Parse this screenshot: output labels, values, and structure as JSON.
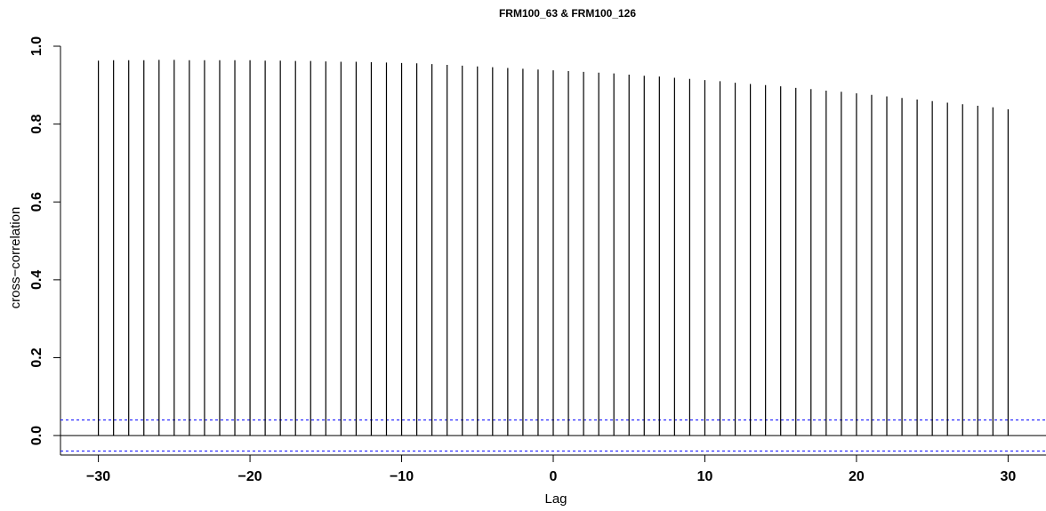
{
  "chart_data": {
    "type": "bar",
    "title": "FRM100_63 & FRM100_126",
    "xlabel": "Lag",
    "ylabel": "cross−correlation",
    "x_ticks": [
      "−30",
      "−20",
      "−10",
      "0",
      "10",
      "20",
      "30"
    ],
    "y_ticks": [
      "0.0",
      "0.2",
      "0.4",
      "0.6",
      "0.8",
      "1.0"
    ],
    "xlim": [
      -32.5,
      32.5
    ],
    "ylim": [
      -0.05,
      1.0
    ],
    "confidence_band": 0.04,
    "lags": [
      -30,
      -29,
      -28,
      -27,
      -26,
      -25,
      -24,
      -23,
      -22,
      -21,
      -20,
      -19,
      -18,
      -17,
      -16,
      -15,
      -14,
      -13,
      -12,
      -11,
      -10,
      -9,
      -8,
      -7,
      -6,
      -5,
      -4,
      -3,
      -2,
      -1,
      0,
      1,
      2,
      3,
      4,
      5,
      6,
      7,
      8,
      9,
      10,
      11,
      12,
      13,
      14,
      15,
      16,
      17,
      18,
      19,
      20,
      21,
      22,
      23,
      24,
      25,
      26,
      27,
      28,
      29,
      30
    ],
    "values": [
      0.963,
      0.964,
      0.964,
      0.964,
      0.965,
      0.965,
      0.964,
      0.964,
      0.964,
      0.964,
      0.964,
      0.963,
      0.963,
      0.962,
      0.962,
      0.961,
      0.96,
      0.96,
      0.959,
      0.958,
      0.957,
      0.956,
      0.954,
      0.952,
      0.95,
      0.948,
      0.946,
      0.944,
      0.942,
      0.94,
      0.938,
      0.936,
      0.934,
      0.932,
      0.93,
      0.927,
      0.924,
      0.922,
      0.919,
      0.916,
      0.913,
      0.91,
      0.906,
      0.903,
      0.9,
      0.897,
      0.893,
      0.89,
      0.886,
      0.883,
      0.879,
      0.875,
      0.871,
      0.867,
      0.863,
      0.859,
      0.855,
      0.851,
      0.847,
      0.843,
      0.838
    ],
    "colors": {
      "bars": "#000000",
      "band": "#0000ff",
      "axis": "#000000"
    }
  }
}
